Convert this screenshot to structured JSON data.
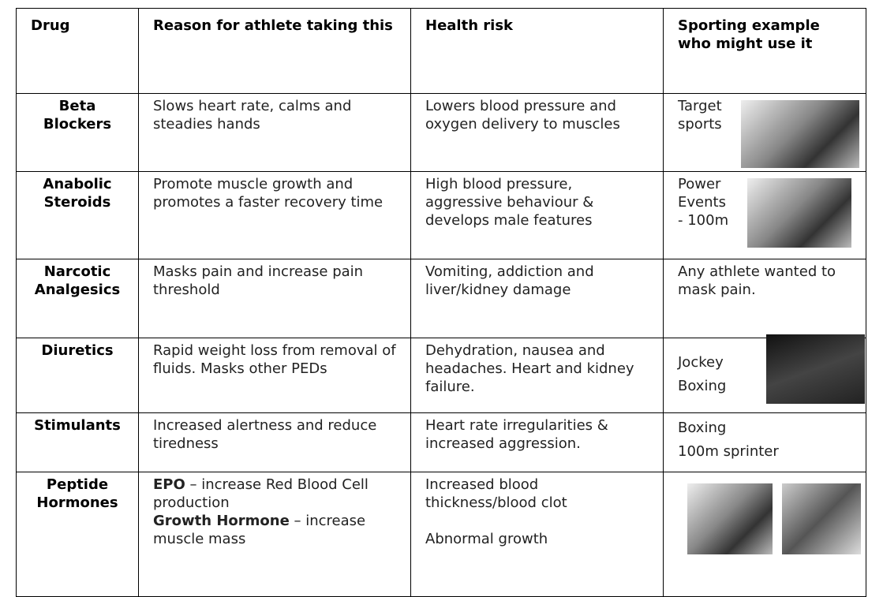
{
  "table": {
    "header": [
      "Drug",
      "Reason for athlete taking this",
      "Health risk",
      "Sporting example who might use it"
    ],
    "rows": [
      {
        "drug": "Beta Blockers",
        "reason": "Slows heart rate, calms and steadies hands",
        "risk": "Lowers blood pressure and oxygen delivery to muscles",
        "example": [
          "Target sports"
        ]
      },
      {
        "drug": "Anabolic Steroids",
        "reason": "Promote muscle growth and promotes a faster recovery time",
        "risk": "High blood pressure, aggressive behaviour & develops male features",
        "example": [
          "Power Events - 100m"
        ]
      },
      {
        "drug": "Narcotic Analgesics",
        "reason": "Masks pain and increase pain threshold",
        "risk": "Vomiting, addiction and liver/kidney damage",
        "example": [
          "Any athlete wanted to mask pain."
        ]
      },
      {
        "drug": "Diuretics",
        "reason": "Rapid weight loss from removal of fluids. Masks other PEDs",
        "risk": "Dehydration, nausea and headaches. Heart and kidney failure.",
        "example": [
          "Jockey",
          "Boxing"
        ]
      },
      {
        "drug": "Stimulants",
        "reason": "Increased alertness and reduce tiredness",
        "risk": "Heart rate irregularities & increased aggression.",
        "example": [
          "Boxing",
          "100m sprinter"
        ]
      },
      {
        "drug": "Peptide Hormones",
        "reason": [
          {
            "bold": "EPO",
            "text": " – increase Red Blood Cell production"
          },
          {
            "bold": "Growth Hormone",
            "text": " – increase muscle mass"
          }
        ],
        "risk": [
          "Increased blood thickness/blood clot",
          "Abnormal growth"
        ],
        "example": []
      }
    ]
  }
}
